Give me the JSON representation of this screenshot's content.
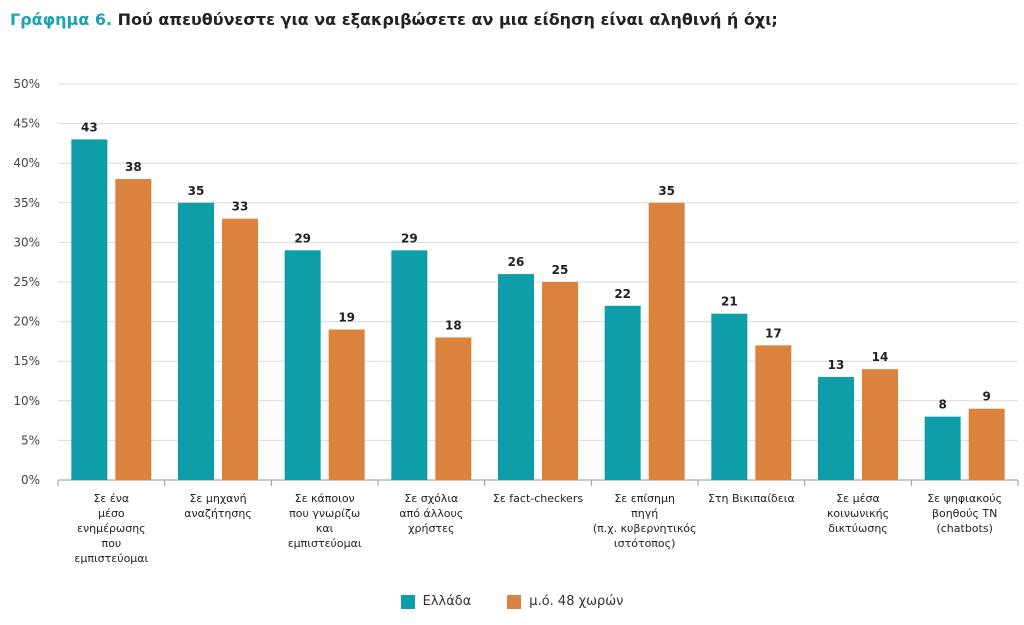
{
  "title": {
    "prefix": "Γράφημα 6.",
    "text": "Πού απευθύνεστε για να εξακριβώσετε αν μια είδηση είναι αληθινή ή όχι;"
  },
  "colors": {
    "series1": "#0e9ea9",
    "series2": "#db823d",
    "grid": "#d9d9d9",
    "axis": "#9a9a9a"
  },
  "chart_data": {
    "type": "bar",
    "categories": [
      [
        "Σε ένα",
        "μέσο",
        "ενημέρωσης",
        "που",
        "εμπιστεύομαι"
      ],
      [
        "Σε μηχανή",
        "αναζήτησης"
      ],
      [
        "Σε κάποιον",
        "που γνωρίζω",
        "και",
        "εμπιστεύομαι"
      ],
      [
        "Σε σχόλια",
        "από άλλους",
        "χρήστες"
      ],
      [
        "Σε fact-checkers"
      ],
      [
        "Σε επίσημη",
        "πηγή",
        "(π.χ. κυβερνητικός",
        "ιστότοπος)"
      ],
      [
        "Στη Βικιπαίδεια"
      ],
      [
        "Σε μέσα",
        "κοινωνικής",
        "δικτύωσης"
      ],
      [
        "Σε ψηφιακούς",
        "βοηθούς ΤΝ",
        "(chatbots)"
      ]
    ],
    "series": [
      {
        "name": "Ελλάδα",
        "values": [
          43,
          35,
          29,
          29,
          26,
          22,
          21,
          13,
          8
        ]
      },
      {
        "name": "μ.ό. 48 χωρών",
        "values": [
          38,
          33,
          19,
          18,
          25,
          35,
          17,
          14,
          9
        ]
      }
    ],
    "yticks": [
      "0%",
      "5%",
      "10%",
      "15%",
      "20%",
      "25%",
      "30%",
      "35%",
      "40%",
      "45%",
      "50%"
    ],
    "ylim": [
      0,
      50
    ],
    "grid": true,
    "legend_position": "bottom"
  }
}
